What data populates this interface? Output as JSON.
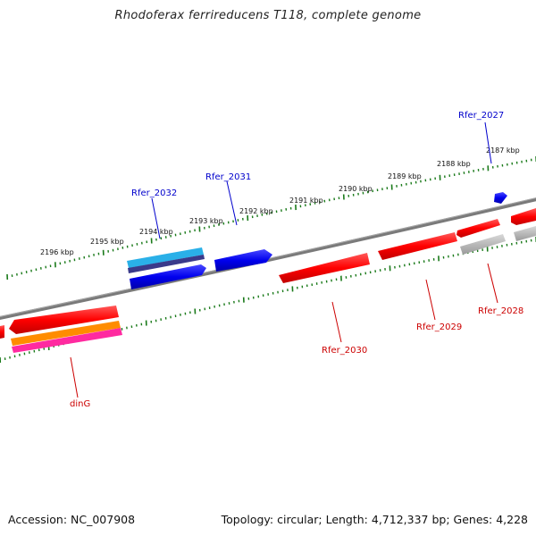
{
  "title": "Rhodoferax ferrireducens T118, complete genome",
  "footer": {
    "accession": "Accession: NC_007908",
    "info": "Topology: circular; Length: 4,712,337 bp; Genes: 4,228"
  },
  "colors": {
    "backbone": "#808080",
    "tick": "#1a7a1a",
    "forward_gene": "#0000ee",
    "reverse_gene": "#ff0000",
    "pseudo": "#b0b0b0",
    "label_forward": "#0000cc",
    "label_reverse": "#cc0000"
  },
  "scale_labels": [
    "2187 kbp",
    "2188 kbp",
    "2189 kbp",
    "2190 kbp",
    "2191 kbp",
    "2192 kbp",
    "2193 kbp",
    "2194 kbp",
    "2195 kbp",
    "2196 kbp"
  ],
  "gene_labels": [
    {
      "text": "Rfer_2027",
      "strand": "forward"
    },
    {
      "text": "Rfer_2031",
      "strand": "forward"
    },
    {
      "text": "Rfer_2032",
      "strand": "forward"
    },
    {
      "text": "Rfer_2028",
      "strand": "reverse"
    },
    {
      "text": "Rfer_2029",
      "strand": "reverse"
    },
    {
      "text": "Rfer_2030",
      "strand": "reverse"
    },
    {
      "text": "dinG",
      "strand": "reverse"
    }
  ]
}
